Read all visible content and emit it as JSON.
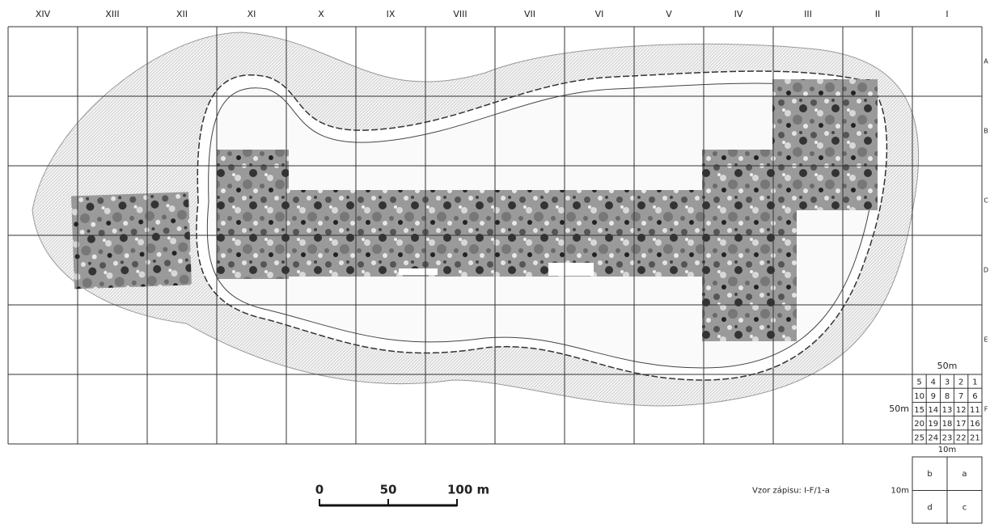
{
  "columns": [
    "XIV",
    "XIII",
    "XII",
    "XI",
    "X",
    "IX",
    "VIII",
    "VII",
    "VI",
    "V",
    "IV",
    "III",
    "II",
    "I"
  ],
  "rows": [
    "A",
    "B",
    "C",
    "D",
    "E",
    "F"
  ],
  "legend": {
    "top_label": "50m",
    "left_label": "50m",
    "cells": [
      [
        "5",
        "4",
        "3",
        "2",
        "1"
      ],
      [
        "10",
        "9",
        "8",
        "7",
        "6"
      ],
      [
        "15",
        "14",
        "13",
        "12",
        "11"
      ],
      [
        "20",
        "19",
        "18",
        "17",
        "16"
      ],
      [
        "25",
        "24",
        "23",
        "22",
        "21"
      ]
    ]
  },
  "subgrid": {
    "top_label": "10m",
    "left_label": "10m",
    "cells": [
      [
        "b",
        "a"
      ],
      [
        "d",
        "c"
      ]
    ]
  },
  "example": "Vzor zápisu: I-F/1-a",
  "scale": {
    "labels": [
      "0",
      "50",
      "100 m"
    ]
  }
}
